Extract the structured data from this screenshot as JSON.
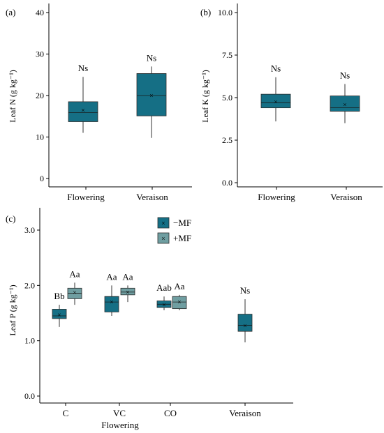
{
  "colors": {
    "minus_mf": "#156f85",
    "plus_mf": "#6f9ea1",
    "axis": "#000000",
    "whisker": "#333333"
  },
  "chart_data": [
    {
      "panel": "(a)",
      "type": "box",
      "ylabel": "Leaf N (g kg⁻¹)",
      "ylim": [
        0,
        40
      ],
      "yticks": [
        "0",
        "10",
        "20",
        "30",
        "40"
      ],
      "categories": [
        "Flowering",
        "Veraison"
      ],
      "boxes": [
        {
          "category": "Flowering",
          "min": 11,
          "q1": 13.7,
          "median": 15.9,
          "q3": 18.5,
          "max": 24.5,
          "mean": 16.5,
          "label": "Ns"
        },
        {
          "category": "Veraison",
          "min": 9.8,
          "q1": 15.1,
          "median": 20.0,
          "q3": 25.3,
          "max": 27,
          "mean": 20.0,
          "label": "Ns"
        }
      ]
    },
    {
      "panel": "(b)",
      "type": "box",
      "ylabel": "Leaf K (g kg⁻¹)",
      "ylim": [
        0,
        10
      ],
      "yticks": [
        "0.0",
        "2.5",
        "5.0",
        "7.5",
        "10.0"
      ],
      "categories": [
        "Flowering",
        "Veraison"
      ],
      "boxes": [
        {
          "category": "Flowering",
          "min": 3.6,
          "q1": 4.4,
          "median": 4.7,
          "q3": 5.2,
          "max": 6.2,
          "mean": 4.75,
          "label": "Ns"
        },
        {
          "category": "Veraison",
          "min": 3.5,
          "q1": 4.2,
          "median": 4.4,
          "q3": 5.1,
          "max": 5.8,
          "mean": 4.6,
          "label": "Ns"
        }
      ]
    },
    {
      "panel": "(c)",
      "type": "box",
      "ylabel": "Leaf P (g kg⁻¹)",
      "ylim": [
        0,
        3
      ],
      "yticks": [
        "0.0",
        "1.0",
        "2.0",
        "3.0"
      ],
      "categories": [
        "C",
        "VC",
        "CO",
        "Veraison"
      ],
      "group_label": "Flowering",
      "legend": [
        "−MF",
        "+MF"
      ],
      "boxes": [
        {
          "category": "C",
          "series": "−MF",
          "min": 1.25,
          "q1": 1.4,
          "median": 1.45,
          "q3": 1.57,
          "max": 1.65,
          "mean": 1.47,
          "label": "Bb"
        },
        {
          "category": "C",
          "series": "+MF",
          "min": 1.65,
          "q1": 1.76,
          "median": 1.86,
          "q3": 1.95,
          "max": 2.05,
          "mean": 1.87,
          "label": "Aa"
        },
        {
          "category": "VC",
          "series": "−MF",
          "min": 1.45,
          "q1": 1.52,
          "median": 1.7,
          "q3": 1.8,
          "max": 2.0,
          "mean": 1.7,
          "label": "Aa"
        },
        {
          "category": "VC",
          "series": "+MF",
          "min": 1.7,
          "q1": 1.83,
          "median": 1.88,
          "q3": 1.95,
          "max": 2.0,
          "mean": 1.88,
          "label": "Aa"
        },
        {
          "category": "CO",
          "series": "−MF",
          "min": 1.55,
          "q1": 1.6,
          "median": 1.66,
          "q3": 1.72,
          "max": 1.8,
          "mean": 1.65,
          "label": "Aab"
        },
        {
          "category": "CO",
          "series": "+MF",
          "min": 1.55,
          "q1": 1.58,
          "median": 1.7,
          "q3": 1.8,
          "max": 1.83,
          "mean": 1.7,
          "label": "Aa"
        },
        {
          "category": "Veraison",
          "series": "−MF",
          "min": 0.97,
          "q1": 1.17,
          "median": 1.28,
          "q3": 1.48,
          "max": 1.75,
          "mean": 1.27,
          "label": "Ns"
        }
      ]
    }
  ]
}
